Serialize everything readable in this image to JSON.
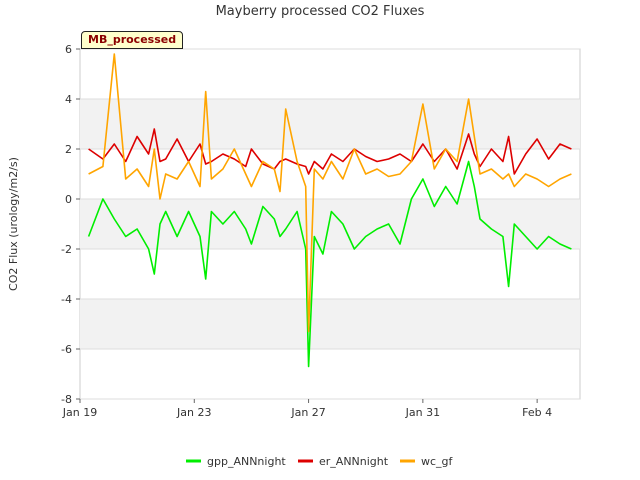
{
  "chart_data": {
    "type": "line",
    "title": "Mayberry processed CO2 Fluxes",
    "badge": "MB_processed",
    "ylabel": "CO2 Flux (urology/m2/s)",
    "ylim": [
      -8,
      6
    ],
    "yticks": [
      -8,
      -6,
      -4,
      -2,
      0,
      2,
      4,
      6
    ],
    "xlim": [
      0,
      17.5
    ],
    "xticks": [
      {
        "day": 0,
        "label": "Jan 19"
      },
      {
        "day": 4,
        "label": "Jan 23"
      },
      {
        "day": 8,
        "label": "Jan 27"
      },
      {
        "day": 12,
        "label": "Jan 31"
      },
      {
        "day": 16,
        "label": "Feb 4"
      }
    ],
    "grid": true,
    "legend_position": "bottom",
    "series": [
      {
        "name": "gpp_ANNnight",
        "color": "#00ee00",
        "x": [
          0.3,
          0.8,
          1.2,
          1.6,
          2.0,
          2.4,
          2.6,
          2.8,
          3.0,
          3.4,
          3.8,
          4.2,
          4.4,
          4.6,
          5.0,
          5.4,
          5.8,
          6.0,
          6.4,
          6.8,
          7.0,
          7.2,
          7.6,
          7.9,
          8.0,
          8.2,
          8.5,
          8.8,
          9.2,
          9.6,
          10.0,
          10.4,
          10.8,
          11.2,
          11.6,
          12.0,
          12.4,
          12.8,
          13.2,
          13.6,
          13.8,
          14.0,
          14.4,
          14.8,
          15.0,
          15.2,
          15.6,
          16.0,
          16.4,
          16.8,
          17.2
        ],
        "y": [
          -1.5,
          0.0,
          -0.8,
          -1.5,
          -1.2,
          -2.0,
          -3.0,
          -1.0,
          -0.5,
          -1.5,
          -0.5,
          -1.5,
          -3.2,
          -0.5,
          -1.0,
          -0.5,
          -1.2,
          -1.8,
          -0.3,
          -0.8,
          -1.5,
          -1.2,
          -0.5,
          -2.0,
          -6.7,
          -1.5,
          -2.2,
          -0.5,
          -1.0,
          -2.0,
          -1.5,
          -1.2,
          -1.0,
          -1.8,
          0.0,
          0.8,
          -0.3,
          0.5,
          -0.2,
          1.5,
          0.5,
          -0.8,
          -1.2,
          -1.5,
          -3.5,
          -1.0,
          -1.5,
          -2.0,
          -1.5,
          -1.8,
          -2.0
        ]
      },
      {
        "name": "er_ANNnight",
        "color": "#dd0000",
        "x": [
          0.3,
          0.8,
          1.2,
          1.6,
          2.0,
          2.4,
          2.6,
          2.8,
          3.0,
          3.4,
          3.8,
          4.2,
          4.4,
          4.6,
          5.0,
          5.4,
          5.8,
          6.0,
          6.4,
          6.8,
          7.0,
          7.2,
          7.6,
          7.9,
          8.0,
          8.2,
          8.5,
          8.8,
          9.2,
          9.6,
          10.0,
          10.4,
          10.8,
          11.2,
          11.6,
          12.0,
          12.4,
          12.8,
          13.2,
          13.6,
          13.8,
          14.0,
          14.4,
          14.8,
          15.0,
          15.2,
          15.6,
          16.0,
          16.4,
          16.8,
          17.2
        ],
        "y": [
          2.0,
          1.6,
          2.2,
          1.5,
          2.5,
          1.8,
          2.8,
          1.5,
          1.6,
          2.4,
          1.5,
          2.2,
          1.4,
          1.5,
          1.8,
          1.6,
          1.3,
          2.0,
          1.4,
          1.2,
          1.5,
          1.6,
          1.4,
          1.3,
          1.0,
          1.5,
          1.2,
          1.8,
          1.5,
          2.0,
          1.7,
          1.5,
          1.6,
          1.8,
          1.5,
          2.2,
          1.5,
          2.0,
          1.2,
          2.6,
          1.8,
          1.3,
          2.0,
          1.5,
          2.5,
          1.0,
          1.8,
          2.4,
          1.6,
          2.2,
          2.0
        ]
      },
      {
        "name": "wc_gf",
        "color": "#ffa500",
        "x": [
          0.3,
          0.8,
          1.2,
          1.6,
          2.0,
          2.4,
          2.6,
          2.8,
          3.0,
          3.4,
          3.8,
          4.2,
          4.4,
          4.6,
          5.0,
          5.4,
          5.8,
          6.0,
          6.4,
          6.8,
          7.0,
          7.2,
          7.6,
          7.9,
          8.0,
          8.2,
          8.5,
          8.8,
          9.2,
          9.6,
          10.0,
          10.4,
          10.8,
          11.2,
          11.6,
          12.0,
          12.4,
          12.8,
          13.2,
          13.6,
          13.8,
          14.0,
          14.4,
          14.8,
          15.0,
          15.2,
          15.6,
          16.0,
          16.4,
          16.8,
          17.2
        ],
        "y": [
          1.0,
          1.3,
          5.8,
          0.8,
          1.2,
          0.5,
          2.0,
          0.0,
          1.0,
          0.8,
          1.5,
          0.5,
          4.3,
          0.8,
          1.2,
          2.0,
          1.0,
          0.5,
          1.5,
          1.2,
          0.3,
          3.6,
          1.5,
          0.5,
          -5.3,
          1.2,
          0.8,
          1.5,
          0.8,
          2.0,
          1.0,
          1.2,
          0.9,
          1.0,
          1.5,
          3.8,
          1.2,
          2.0,
          1.5,
          4.0,
          2.5,
          1.0,
          1.2,
          0.8,
          1.0,
          0.5,
          1.0,
          0.8,
          0.5,
          0.8,
          1.0
        ]
      }
    ]
  }
}
